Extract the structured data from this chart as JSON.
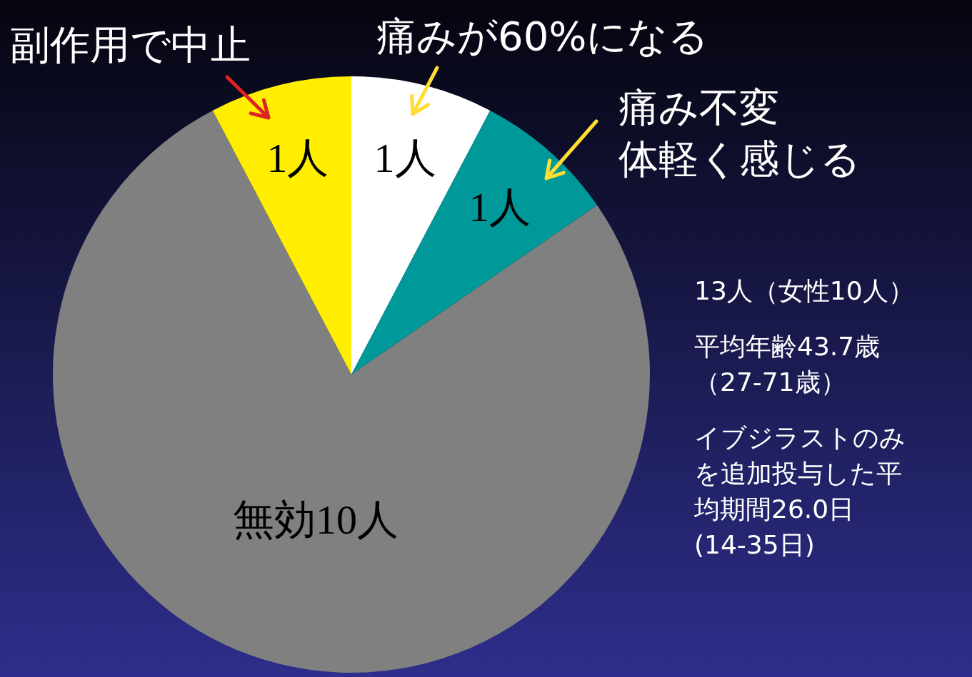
{
  "chart_data": {
    "type": "pie",
    "categories": [
      "痛みが60%になる",
      "痛み不変体軽く感じる",
      null,
      "副作用で中止"
    ],
    "values": [
      1,
      1,
      10,
      1
    ],
    "colors": [
      "#ffffff",
      "#009999",
      "#808080",
      "#ffee00"
    ],
    "value_labels": [
      "1人",
      "1人",
      "無効10人",
      "1人"
    ],
    "annotations": [
      "13人（女性10人）",
      "平均年齢43.7歳（27-71歳）",
      "イブジラストのみを追加投与した平均期間26.0日(14-35日)"
    ],
    "legend": false
  }
}
